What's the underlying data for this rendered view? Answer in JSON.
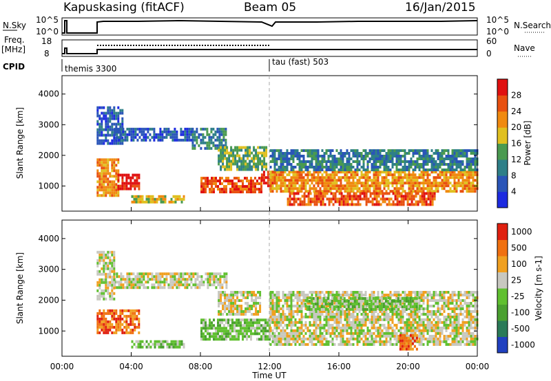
{
  "header": {
    "station": "Kapuskasing (fitACF)",
    "beam": "Beam 05",
    "date": "16/Jan/2015"
  },
  "noise_panel": {
    "left_label": "N.Sky",
    "right_label": "N.Search",
    "tick_top": "10^5",
    "tick_bottom": "10^0"
  },
  "freq_panel": {
    "left_label_line1": "Freq.",
    "left_label_line2": "[MHz]",
    "left_tick_top": "18",
    "left_tick_bottom": "8",
    "right_label": "Nave",
    "right_tick_top": "60",
    "right_tick_bottom": "0"
  },
  "cpid": {
    "label": "CPID",
    "modes": [
      {
        "name": "themis 3300",
        "start_hour": 0.0
      },
      {
        "name": "tau (fast) 503",
        "start_hour": 12.0
      }
    ]
  },
  "time_axis": {
    "label": "Time UT",
    "ticks": [
      "00:00",
      "04:00",
      "08:00",
      "12:00",
      "16:00",
      "20:00",
      "00:00"
    ],
    "tick_hours": [
      0,
      4,
      8,
      12,
      16,
      20,
      24
    ]
  },
  "chart_data": [
    {
      "type": "heatmap",
      "title": "",
      "xlabel": "Time UT",
      "ylabel": "Slant Range [km]",
      "xlim_hours": [
        0,
        24
      ],
      "ylim_km": [
        180,
        4600
      ],
      "yticks": [
        "1000",
        "2000",
        "3000",
        "4000"
      ],
      "ytick_values": [
        1000,
        2000,
        3000,
        4000
      ],
      "colorbar": {
        "label": "Power [dB]",
        "ticks": [
          "4",
          "8",
          "12",
          "16",
          "20",
          "24",
          "28"
        ],
        "colors": [
          "#1d2be0",
          "#2a55b8",
          "#2e7f88",
          "#4a9a50",
          "#e0c020",
          "#f08a10",
          "#e85010",
          "#e01010"
        ]
      },
      "regions": [
        {
          "t": [
            2.0,
            3.2
          ],
          "r": [
            700,
            1900
          ],
          "level": 5
        },
        {
          "t": [
            2.0,
            3.5
          ],
          "r": [
            2400,
            3600
          ],
          "level": 1
        },
        {
          "t": [
            3.0,
            7.5
          ],
          "r": [
            2500,
            2900
          ],
          "level": 1
        },
        {
          "t": [
            3.2,
            4.5
          ],
          "r": [
            900,
            1400
          ],
          "level": 7
        },
        {
          "t": [
            4.0,
            7.0
          ],
          "r": [
            500,
            700
          ],
          "level": 4
        },
        {
          "t": [
            7.5,
            9.5
          ],
          "r": [
            2200,
            2900
          ],
          "level": 2
        },
        {
          "t": [
            8.0,
            11.5
          ],
          "r": [
            800,
            1300
          ],
          "level": 6
        },
        {
          "t": [
            9.0,
            11.8
          ],
          "r": [
            1500,
            2300
          ],
          "level": 3
        },
        {
          "t": [
            11.5,
            12.4
          ],
          "r": [
            1000,
            1500
          ],
          "level": 7
        },
        {
          "t": [
            12.0,
            24.0
          ],
          "r": [
            800,
            1500
          ],
          "level": 5
        },
        {
          "t": [
            12.0,
            24.0
          ],
          "r": [
            1500,
            2200
          ],
          "level": 2
        },
        {
          "t": [
            13.0,
            21.5
          ],
          "r": [
            400,
            800
          ],
          "level": 6
        }
      ]
    },
    {
      "type": "heatmap",
      "title": "",
      "xlabel": "Time UT",
      "ylabel": "Slant Range [km]",
      "xlim_hours": [
        0,
        24
      ],
      "ylim_km": [
        180,
        4600
      ],
      "yticks": [
        "1000",
        "2000",
        "3000",
        "4000"
      ],
      "ytick_values": [
        1000,
        2000,
        3000,
        4000
      ],
      "colorbar": {
        "label": "Velocity [m s-1]",
        "ticks": [
          "1000",
          "500",
          "100",
          "25",
          "-25",
          "-100",
          "-500",
          "-1000"
        ],
        "colors": [
          "#2040c0",
          "#2a7a58",
          "#4aa030",
          "#60c030",
          "#c8c8c0",
          "#f0a020",
          "#f07010",
          "#e02010"
        ]
      },
      "regions": [
        {
          "t": [
            2.0,
            4.5
          ],
          "r": [
            900,
            1700
          ],
          "level": 6
        },
        {
          "t": [
            3.0,
            9.5
          ],
          "r": [
            2400,
            2900
          ],
          "level": 4
        },
        {
          "t": [
            2.0,
            3.0
          ],
          "r": [
            2000,
            3600
          ],
          "level": 4
        },
        {
          "t": [
            4.0,
            7.0
          ],
          "r": [
            450,
            700
          ],
          "level": 3
        },
        {
          "t": [
            8.0,
            12.0
          ],
          "r": [
            700,
            1400
          ],
          "level": 3
        },
        {
          "t": [
            9.0,
            11.5
          ],
          "r": [
            1500,
            2300
          ],
          "level": 4
        },
        {
          "t": [
            12.0,
            24.0
          ],
          "r": [
            600,
            1500
          ],
          "level": 4
        },
        {
          "t": [
            12.0,
            24.0
          ],
          "r": [
            1500,
            2300
          ],
          "level": 4
        },
        {
          "t": [
            14.0,
            20.5
          ],
          "r": [
            1700,
            2100
          ],
          "level": 3
        },
        {
          "t": [
            19.5,
            20.5
          ],
          "r": [
            450,
            900
          ],
          "level": 6
        }
      ]
    }
  ]
}
